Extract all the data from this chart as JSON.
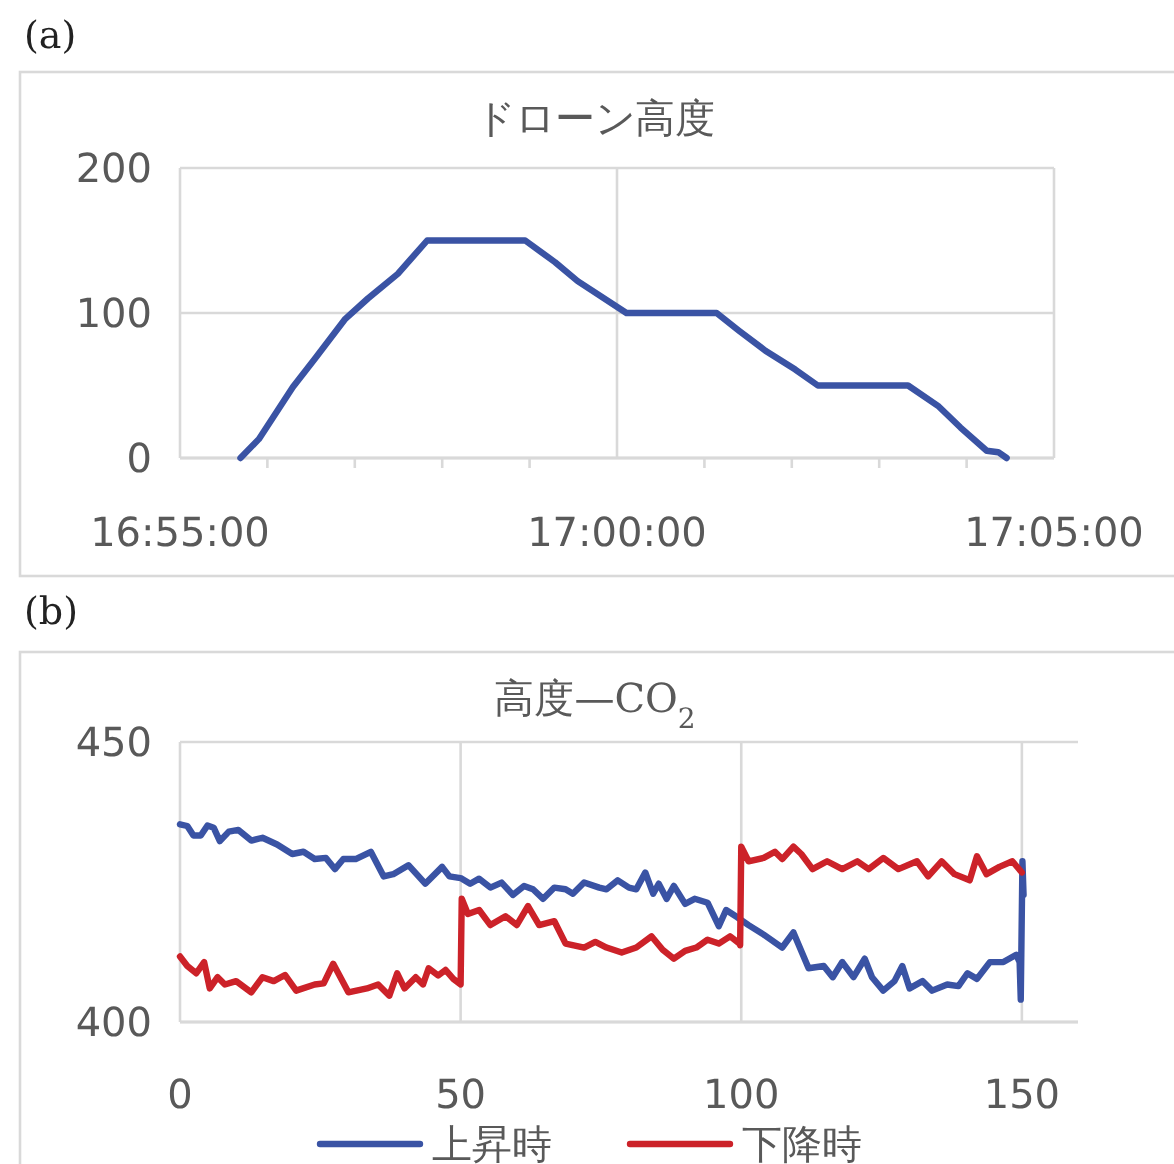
{
  "chart_data": [
    {
      "type": "line",
      "title": "ドローン高度",
      "annotations": [
        "(a)"
      ],
      "xlim": [
        16.91667,
        17.08333
      ],
      "ylim": [
        0,
        200
      ],
      "xticks": [
        {
          "value": 16.91667,
          "label": "16:55:00"
        },
        {
          "value": 16.93333,
          "label": null
        },
        {
          "value": 16.95,
          "label": null
        },
        {
          "value": 16.96667,
          "label": null
        },
        {
          "value": 16.98333,
          "label": null
        },
        {
          "value": 17,
          "label": "17:00:00"
        },
        {
          "value": 17.01667,
          "label": null
        },
        {
          "value": 17.03333,
          "label": null
        },
        {
          "value": 17.05,
          "label": null
        },
        {
          "value": 17.06667,
          "label": null
        },
        {
          "value": 17.08333,
          "label": "17:05:00"
        }
      ],
      "yticks": [
        0,
        100,
        200
      ],
      "grid": true,
      "legend": false,
      "series": [
        {
          "color": "#3a53a4",
          "x": [
            16.9282,
            16.9317,
            16.9382,
            16.9425,
            16.9482,
            16.9525,
            16.9582,
            16.9638,
            16.9825,
            16.9882,
            16.9925,
            17.0018,
            17.019,
            17.0232,
            17.0283,
            17.034,
            17.0383,
            17.0555,
            17.0612,
            17.0655,
            17.0705,
            17.0727,
            17.0743
          ],
          "values": [
            0,
            13,
            49,
            69,
            96,
            110,
            127,
            150,
            150,
            135,
            122,
            100,
            100,
            88,
            74,
            61,
            50,
            50,
            36,
            21,
            5,
            4,
            0
          ]
        }
      ]
    },
    {
      "type": "line",
      "title": "高度—CO$_{2}$",
      "annotations": [
        "(b)"
      ],
      "xlim": [
        0,
        160
      ],
      "ylim": [
        400,
        450
      ],
      "xticks": [
        0,
        50,
        100,
        150
      ],
      "yticks": [
        400,
        450
      ],
      "grid": true,
      "legend": "bottom",
      "series": [
        {
          "name": "上昇時",
          "color": "#3a53a4",
          "x": [
            0,
            1.3,
            2.4,
            3.7,
            4.9,
            6,
            7.1,
            8.7,
            10.4,
            12.7,
            14.7,
            17.3,
            20,
            22,
            24,
            26,
            27.6,
            29.1,
            31.3,
            34,
            36.3,
            38,
            40.7,
            43.7,
            46.7,
            48,
            50,
            51.7,
            53.3,
            55.3,
            57.3,
            59.3,
            61.3,
            62.9,
            64.7,
            66.7,
            68.7,
            70,
            72,
            74.7,
            76,
            78,
            80,
            81.3,
            82.9,
            84.3,
            85.3,
            86.7,
            88,
            90,
            91.7,
            94,
            96,
            97.3,
            99.3,
            101.3,
            104,
            107.3,
            109.3,
            112,
            114.7,
            116.3,
            118,
            120,
            122,
            123.3,
            125.3,
            127.3,
            128.7,
            130,
            132.3,
            134,
            136.7,
            138.7,
            140.3,
            142,
            144.3,
            146.7,
            149,
            149.6,
            149.8,
            150.1,
            150.3
          ],
          "values": [
            435.3,
            435,
            433.3,
            433.3,
            435.1,
            434.7,
            432.3,
            434,
            434.3,
            432.4,
            432.9,
            431.7,
            430,
            430.4,
            429.1,
            429.3,
            427.3,
            429.1,
            429.1,
            430.4,
            426,
            426.4,
            428,
            424.7,
            427.7,
            426,
            425.7,
            424.7,
            425.6,
            424,
            424.9,
            422.7,
            424.3,
            423.7,
            422,
            424,
            423.7,
            422.9,
            424.9,
            424,
            423.7,
            425.3,
            424,
            423.7,
            426.7,
            422.9,
            424.7,
            422,
            424.3,
            421.1,
            422,
            421.3,
            417.1,
            420,
            418.7,
            417.3,
            415.6,
            413.3,
            416,
            409.6,
            410,
            408,
            410.7,
            408,
            411.3,
            408,
            405.6,
            407.3,
            410,
            406,
            407.3,
            405.6,
            406.7,
            406.4,
            408.7,
            407.7,
            410.7,
            410.7,
            412,
            410.7,
            404,
            428.7,
            422.7
          ]
        },
        {
          "name": "下降時",
          "color": "#cc2229",
          "x": [
            0,
            1.3,
            2.9,
            4.3,
            5.3,
            6.7,
            8,
            10,
            12.7,
            14.7,
            16.7,
            18.7,
            20.7,
            24,
            25.6,
            27.3,
            30,
            33.3,
            35.3,
            37.3,
            38.7,
            40,
            42,
            43.3,
            44.3,
            46,
            47.3,
            48.7,
            50,
            50.2,
            51.3,
            53.3,
            55.3,
            58,
            60,
            62,
            64,
            66.7,
            68.7,
            72,
            74,
            76,
            78.7,
            81.3,
            84,
            86,
            88,
            90,
            92,
            94,
            96,
            98,
            99.7,
            99.8,
            100,
            101.3,
            104,
            106,
            107.3,
            109.3,
            110.7,
            112.7,
            115.3,
            118,
            120.7,
            122.7,
            125.3,
            128,
            131.3,
            133.3,
            135.7,
            138,
            140.7,
            142,
            143.7,
            146,
            148.3,
            150
          ],
          "values": [
            411.7,
            410,
            408.7,
            410.7,
            406,
            408,
            406.7,
            407.3,
            405.3,
            408,
            407.3,
            408.4,
            405.6,
            406.7,
            406.9,
            410.4,
            405.3,
            406,
            406.7,
            404.7,
            408.7,
            406,
            408,
            406.7,
            409.6,
            408.3,
            409.3,
            407.7,
            406.7,
            422,
            419.3,
            420,
            417.3,
            418.9,
            417.3,
            420.7,
            417.3,
            418,
            414,
            413.3,
            414.3,
            413.3,
            412.4,
            413.3,
            415.3,
            412.9,
            411.3,
            412.7,
            413.3,
            414.7,
            414,
            415.3,
            414,
            413.7,
            431.3,
            428.7,
            429.3,
            430.4,
            429.1,
            431.3,
            430,
            427.3,
            428.7,
            427.3,
            428.7,
            427.3,
            429.3,
            427.3,
            428.7,
            426,
            428.7,
            426.4,
            425.3,
            429.6,
            426.4,
            427.7,
            428.7,
            426.7
          ]
        }
      ]
    }
  ]
}
